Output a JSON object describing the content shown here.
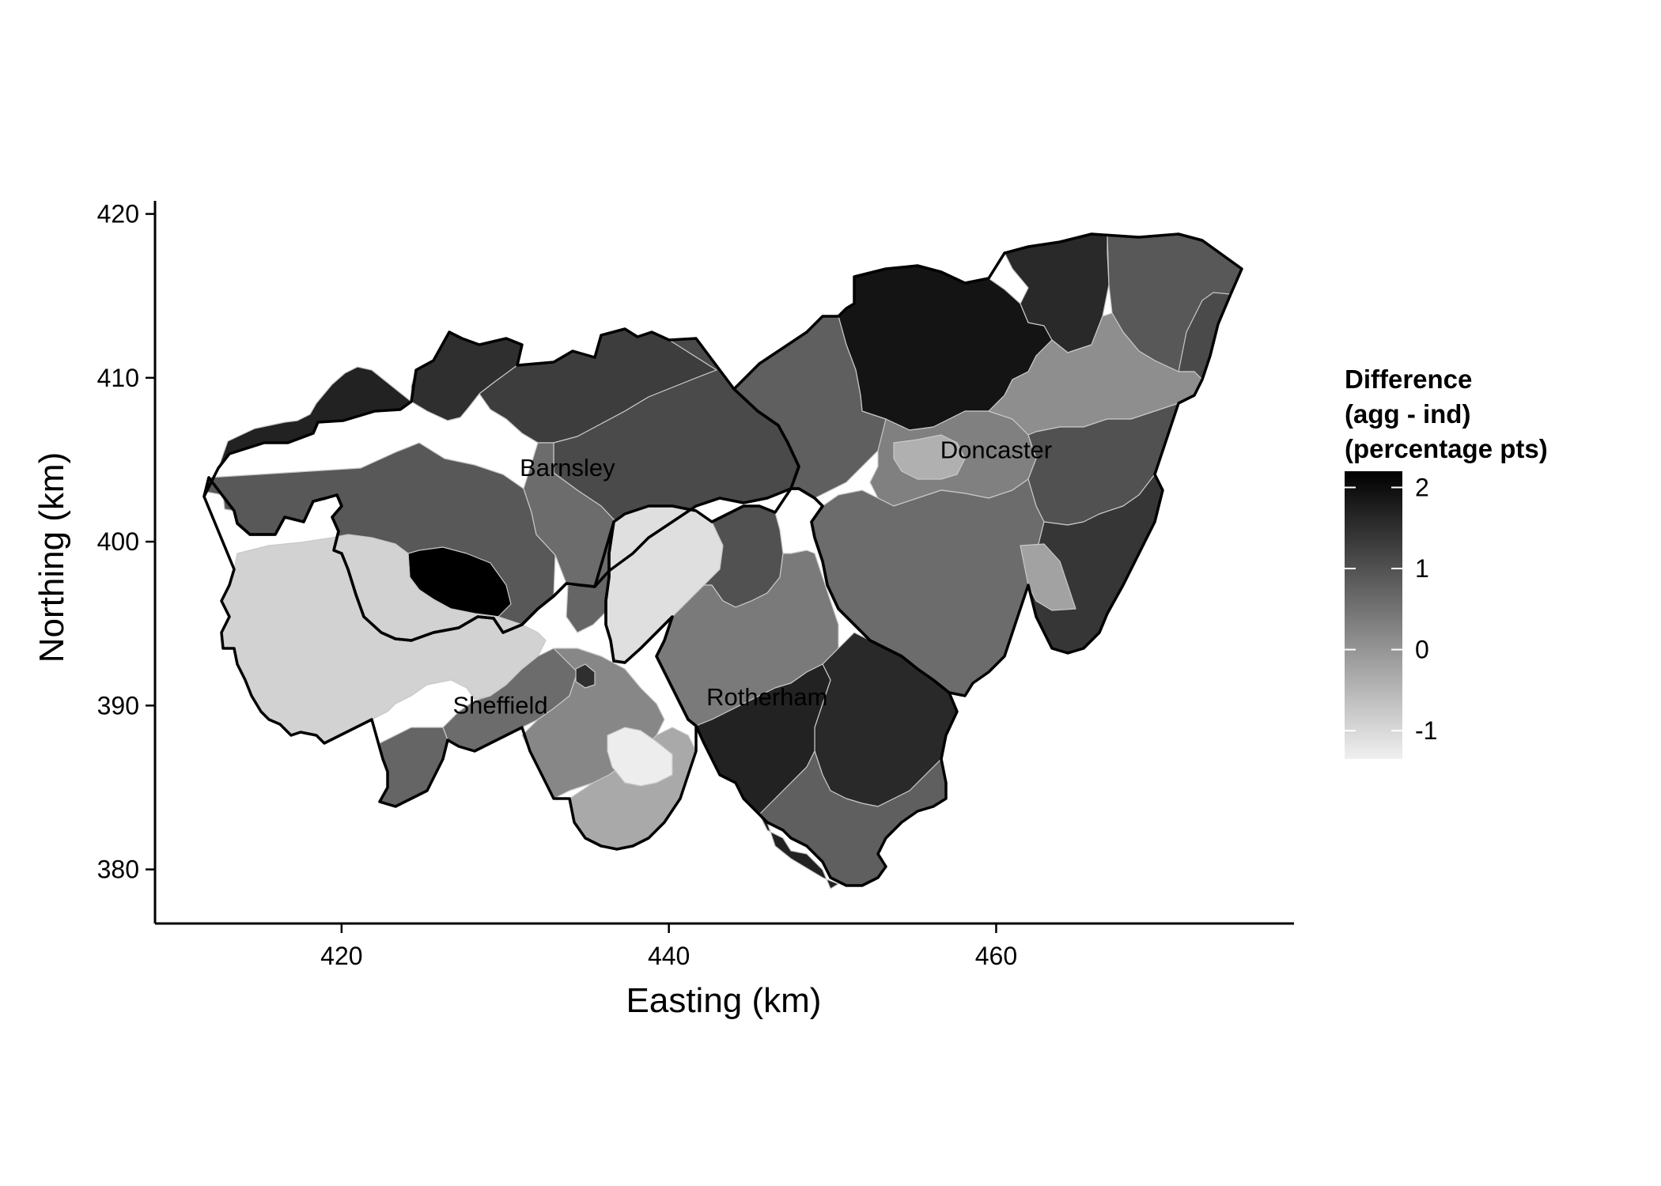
{
  "chart_data": {
    "type": "map",
    "xlabel": "Easting (km)",
    "ylabel": "Northing (km)",
    "xlim": [
      408.6,
      478.2
    ],
    "ylim": [
      376.7,
      420.8
    ],
    "x_ticks": [
      420,
      440,
      460
    ],
    "y_ticks": [
      380,
      390,
      400,
      410,
      420
    ],
    "grid": false,
    "legend": {
      "title_lines": [
        "Difference",
        "(agg - ind)",
        "(percentage pts)"
      ],
      "position": "right",
      "scale": "grayscale, light = low, dark = high",
      "min": -1.35,
      "max": 2.2,
      "ticks": [
        2,
        1,
        0,
        -1
      ],
      "low_color": "#f0f0f0",
      "high_color": "#000000"
    },
    "districts": [
      {
        "name": "Barnsley",
        "label_at": [
          433.8,
          404.4
        ]
      },
      {
        "name": "Doncaster",
        "label_at": [
          460.0,
          405.5
        ]
      },
      {
        "name": "Sheffield",
        "label_at": [
          429.7,
          389.9
        ]
      },
      {
        "name": "Rotherham",
        "label_at": [
          446.0,
          390.4
        ]
      }
    ],
    "regions": [
      {
        "district": "Barnsley",
        "value": 1.7
      },
      {
        "district": "Barnsley",
        "value": 1.5
      },
      {
        "district": "Barnsley",
        "value": 1.3
      },
      {
        "district": "Barnsley",
        "value": 1.1
      },
      {
        "district": "Barnsley",
        "value": 0.9
      },
      {
        "district": "Barnsley",
        "value": 0.6
      },
      {
        "district": "Barnsley",
        "value": 2.2
      },
      {
        "district": "Barnsley",
        "value": 0.7
      },
      {
        "district": "Doncaster",
        "value": 1.9
      },
      {
        "district": "Doncaster",
        "value": 1.6
      },
      {
        "district": "Doncaster",
        "value": 0.9
      },
      {
        "district": "Doncaster",
        "value": 1.1
      },
      {
        "district": "Doncaster",
        "value": 0.8
      },
      {
        "district": "Doncaster",
        "value": 0.3
      },
      {
        "district": "Doncaster",
        "value": 0.1
      },
      {
        "district": "Doncaster",
        "value": 1.0
      },
      {
        "district": "Doncaster",
        "value": -0.4
      },
      {
        "district": "Doncaster",
        "value": 0.6
      },
      {
        "district": "Doncaster",
        "value": 1.4
      },
      {
        "district": "Doncaster",
        "value": -0.2
      },
      {
        "district": "Sheffield",
        "value": -0.9
      },
      {
        "district": "Sheffield",
        "value": 0.6
      },
      {
        "district": "Sheffield",
        "value": 0.7
      },
      {
        "district": "Sheffield",
        "value": 0.2
      },
      {
        "district": "Sheffield",
        "value": -0.3
      },
      {
        "district": "Sheffield",
        "value": -1.3
      },
      {
        "district": "Sheffield",
        "value": 1.5
      },
      {
        "district": "Rotherham",
        "value": -1.1
      },
      {
        "district": "Rotherham",
        "value": 1.0
      },
      {
        "district": "Rotherham",
        "value": 0.4
      },
      {
        "district": "Rotherham",
        "value": 1.6
      },
      {
        "district": "Rotherham",
        "value": 1.7
      },
      {
        "district": "Rotherham",
        "value": 0.8
      }
    ]
  }
}
